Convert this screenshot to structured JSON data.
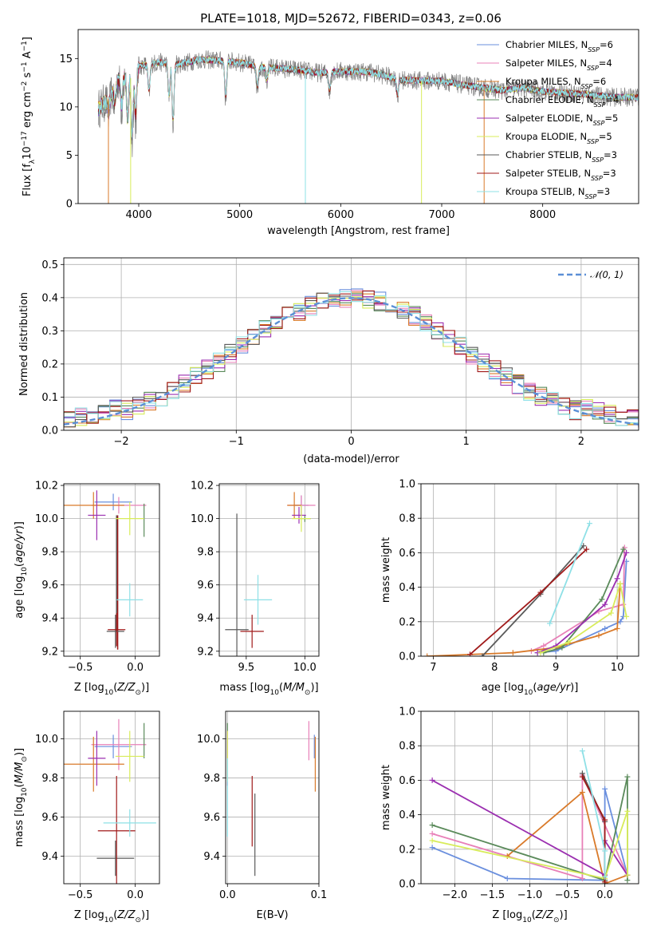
{
  "title": "PLATE=1018, MJD=52672, FIBERID=0343, z=0.06",
  "colors": {
    "Chabrier MILES": "#6a8fde",
    "Salpeter MILES": "#e880b8",
    "Kroupa MILES": "#d97a2a",
    "Chabrier ELODIE": "#5a8a5a",
    "Salpeter ELODIE": "#9b2fb0",
    "Kroupa ELODIE": "#d8ec5a",
    "Chabrier STELIB": "#5a5a5a",
    "Salpeter STELIB": "#a01a1a",
    "Kroupa STELIB": "#8ee0e6",
    "data": "#808080",
    "normal": "#5b8fd6"
  },
  "chart_data": [
    {
      "id": "spectrum",
      "type": "line",
      "xlabel": "wavelength [Angstrom, rest frame]",
      "ylabel": "Flux [f_λ10^-17 erg cm^-2 s^-1 A^-1]",
      "xlim": [
        3400,
        8950
      ],
      "ylim": [
        0,
        18
      ],
      "xticks": [
        4000,
        5000,
        6000,
        7000,
        8000
      ],
      "yticks": [
        0,
        5,
        10,
        15
      ],
      "grid": false,
      "legend_position": "right",
      "legend": [
        {
          "label": "Chabrier MILES",
          "n_ssp": "6"
        },
        {
          "label": "Salpeter MILES",
          "n_ssp": "4"
        },
        {
          "label": "Kroupa MILES",
          "n_ssp": "6"
        },
        {
          "label": "Chabrier ELODIE",
          "n_ssp": "4"
        },
        {
          "label": "Salpeter ELODIE",
          "n_ssp": "5"
        },
        {
          "label": "Kroupa ELODIE",
          "n_ssp": "5"
        },
        {
          "label": "Chabrier STELIB",
          "n_ssp": "3"
        },
        {
          "label": "Salpeter STELIB",
          "n_ssp": "3"
        },
        {
          "label": "Kroupa STELIB",
          "n_ssp": "3"
        }
      ],
      "continuum": [
        [
          3600,
          9.8
        ],
        [
          3700,
          10.8
        ],
        [
          3800,
          12.8
        ],
        [
          3900,
          13.2
        ],
        [
          3950,
          12.6
        ],
        [
          4000,
          14.2
        ],
        [
          4200,
          14.6
        ],
        [
          4400,
          14.4
        ],
        [
          4600,
          14.9
        ],
        [
          4800,
          14.8
        ],
        [
          5000,
          14.6
        ],
        [
          5200,
          14.1
        ],
        [
          5400,
          14.0
        ],
        [
          5600,
          13.8
        ],
        [
          5800,
          13.5
        ],
        [
          6000,
          13.7
        ],
        [
          6300,
          13.6
        ],
        [
          6600,
          12.8
        ],
        [
          6800,
          12.7
        ],
        [
          7000,
          12.7
        ],
        [
          7200,
          12.3
        ],
        [
          7400,
          12.0
        ],
        [
          7600,
          11.7
        ],
        [
          7800,
          12.0
        ],
        [
          8000,
          11.6
        ],
        [
          8300,
          11.4
        ],
        [
          8700,
          11.0
        ],
        [
          8950,
          11.0
        ]
      ],
      "absorption_features": [
        [
          3700,
          9.2
        ],
        [
          3760,
          10.0
        ],
        [
          3830,
          9.6
        ],
        [
          3890,
          8.0
        ],
        [
          3934,
          6.2
        ],
        [
          3969,
          8.4
        ],
        [
          4102,
          11.2
        ],
        [
          4300,
          10.6
        ],
        [
          4340,
          7.8
        ],
        [
          4861,
          10.6
        ],
        [
          5175,
          11.8
        ],
        [
          5270,
          12.6
        ],
        [
          5890,
          11.4
        ],
        [
          6563,
          11.0
        ]
      ]
    },
    {
      "id": "residual-histogram",
      "type": "line",
      "xlabel": "(data-model)/error",
      "ylabel": "Normed distribution",
      "xlim": [
        -2.5,
        2.5
      ],
      "ylim": [
        0,
        0.52
      ],
      "xticks": [
        -2,
        -1,
        0,
        1,
        2
      ],
      "yticks": [
        0.0,
        0.1,
        0.2,
        0.3,
        0.4,
        0.5
      ],
      "grid": true,
      "legend_position": "top-right",
      "reference_label": "𝒩(0, 1)",
      "bin_width": 0.1,
      "note": "step histograms of residuals for each of the 9 fits, approximately following a standard normal"
    },
    {
      "id": "age-vs-Z",
      "type": "scatter",
      "xlabel": "Z [log10(Z/Z⊙)]",
      "ylabel": "age  [log10(age/yr)]",
      "xlim": [
        -0.65,
        0.22
      ],
      "ylim": [
        9.17,
        10.21
      ],
      "xticks": [
        -0.5,
        0.0
      ],
      "yticks": [
        9.2,
        9.4,
        9.6,
        9.8,
        10.0,
        10.2
      ],
      "grid": true,
      "points": [
        {
          "model": "Chabrier MILES",
          "x": -0.2,
          "y": 10.1,
          "xerr": 0.17,
          "yerr": 0.05
        },
        {
          "model": "Salpeter MILES",
          "x": -0.15,
          "y": 10.08,
          "xerr": 0.25,
          "yerr": 0.05
        },
        {
          "model": "Kroupa MILES",
          "x": -0.38,
          "y": 10.08,
          "xerr": 0.28,
          "yerr": 0.08
        },
        {
          "model": "Chabrier ELODIE",
          "x": 0.08,
          "y": 9.99,
          "xerr": 0.0,
          "yerr": 0.1
        },
        {
          "model": "Salpeter ELODIE",
          "x": -0.35,
          "y": 10.02,
          "xerr": 0.08,
          "yerr": 0.15
        },
        {
          "model": "Kroupa ELODIE",
          "x": -0.05,
          "y": 10.0,
          "xerr": 0.13,
          "yerr": 0.1
        },
        {
          "model": "Chabrier STELIB",
          "x": -0.18,
          "y": 9.32,
          "xerr": 0.08,
          "yerr": 0.1
        },
        {
          "model": "Salpeter STELIB",
          "x": -0.17,
          "y": 9.33,
          "xerr": 0.08,
          "yerr": 0.1
        },
        {
          "model": "Kroupa STELIB",
          "x": -0.05,
          "y": 9.51,
          "xerr": 0.12,
          "yerr": 0.1
        }
      ],
      "vertical_segments": [
        {
          "model": "Chabrier STELIB",
          "x": -0.17,
          "y1": 9.32,
          "y2": 10.02
        },
        {
          "model": "Salpeter STELIB",
          "x": -0.16,
          "y1": 9.21,
          "y2": 10.02
        }
      ]
    },
    {
      "id": "age-vs-mass",
      "type": "scatter",
      "xlabel": "mass [log10(M/M⊙)]",
      "ylabel": "",
      "xlim": [
        9.27,
        10.12
      ],
      "ylim": [
        9.17,
        10.21
      ],
      "xticks": [
        9.5,
        10.0
      ],
      "yticks": [
        9.2,
        9.4,
        9.6,
        9.8,
        10.0,
        10.2
      ],
      "grid": true,
      "points": [
        {
          "model": "Chabrier MILES",
          "x": 9.97,
          "y": 10.08,
          "xerr": 0.06,
          "yerr": 0.06
        },
        {
          "model": "Salpeter MILES",
          "x": 9.97,
          "y": 10.08,
          "xerr": 0.12,
          "yerr": 0.06
        },
        {
          "model": "Kroupa MILES",
          "x": 9.91,
          "y": 10.08,
          "xerr": 0.06,
          "yerr": 0.08
        },
        {
          "model": "Chabrier ELODIE",
          "x": 10.0,
          "y": 10.0,
          "xerr": 0.05,
          "yerr": 0.02
        },
        {
          "model": "Salpeter ELODIE",
          "x": 9.95,
          "y": 10.02,
          "xerr": 0.06,
          "yerr": 0.05
        },
        {
          "model": "Kroupa ELODIE",
          "x": 9.97,
          "y": 10.0,
          "xerr": 0.08,
          "yerr": 0.08
        },
        {
          "model": "Chabrier STELIB",
          "x": 9.42,
          "y": 9.33,
          "xerr": 0.1,
          "yerr": 0.7
        },
        {
          "model": "Salpeter STELIB",
          "x": 9.55,
          "y": 9.32,
          "xerr": 0.1,
          "yerr": 0.1
        },
        {
          "model": "Kroupa STELIB",
          "x": 9.6,
          "y": 9.51,
          "xerr": 0.12,
          "yerr": 0.15
        }
      ]
    },
    {
      "id": "mass-weight-vs-age",
      "type": "line",
      "xlabel": "age  [log10(age/yr)]",
      "ylabel": "mass weight",
      "xlim": [
        6.8,
        10.35
      ],
      "ylim": [
        0,
        1.0
      ],
      "xticks": [
        7,
        8,
        9,
        10
      ],
      "yticks": [
        0.0,
        0.2,
        0.4,
        0.6,
        0.8,
        1.0
      ],
      "grid": true,
      "series": [
        {
          "model": "Chabrier MILES",
          "x": [
            8.7,
            9.0,
            9.8,
            10.05,
            10.1,
            10.15
          ],
          "y": [
            0.02,
            0.03,
            0.16,
            0.2,
            0.23,
            0.55
          ]
        },
        {
          "model": "Salpeter MILES",
          "x": [
            8.6,
            8.8,
            9.7,
            10.1,
            10.12
          ],
          "y": [
            0.03,
            0.06,
            0.26,
            0.3,
            0.63
          ]
        },
        {
          "model": "Kroupa MILES",
          "x": [
            6.9,
            8.3,
            9.0,
            9.7,
            10.0,
            10.05
          ],
          "y": [
            0.0,
            0.02,
            0.05,
            0.12,
            0.16,
            0.42
          ]
        },
        {
          "model": "Chabrier ELODIE",
          "x": [
            8.8,
            9.1,
            9.75,
            10.1
          ],
          "y": [
            0.02,
            0.05,
            0.33,
            0.62
          ]
        },
        {
          "model": "Salpeter ELODIE",
          "x": [
            8.7,
            9.0,
            9.8,
            10.0,
            10.15
          ],
          "y": [
            0.02,
            0.06,
            0.3,
            0.45,
            0.6
          ]
        },
        {
          "model": "Kroupa ELODIE",
          "x": [
            8.75,
            9.2,
            9.9,
            10.05,
            10.15
          ],
          "y": [
            0.02,
            0.08,
            0.25,
            0.42,
            0.23
          ]
        },
        {
          "model": "Chabrier STELIB",
          "x": [
            7.8,
            8.75,
            9.45
          ],
          "y": [
            0.0,
            0.36,
            0.64
          ]
        },
        {
          "model": "Salpeter STELIB",
          "x": [
            7.6,
            8.75,
            9.5
          ],
          "y": [
            0.01,
            0.37,
            0.62
          ]
        },
        {
          "model": "Kroupa STELIB",
          "x": [
            8.9,
            9.55
          ],
          "y": [
            0.19,
            0.77
          ]
        }
      ]
    },
    {
      "id": "mass-vs-Z",
      "type": "scatter",
      "xlabel": "Z [log10(Z/Z⊙)]",
      "ylabel": "mass [log10(M/M⊙)]",
      "xlim": [
        -0.65,
        0.22
      ],
      "ylim": [
        9.26,
        10.14
      ],
      "xticks": [
        -0.5,
        0.0
      ],
      "yticks": [
        9.4,
        9.6,
        9.8,
        10.0
      ],
      "grid": true,
      "points": [
        {
          "model": "Chabrier MILES",
          "x": -0.2,
          "y": 9.96,
          "xerr": 0.17,
          "yerr": 0.06
        },
        {
          "model": "Salpeter MILES",
          "x": -0.15,
          "y": 9.97,
          "xerr": 0.25,
          "yerr": 0.13
        },
        {
          "model": "Kroupa MILES",
          "x": -0.38,
          "y": 9.87,
          "xerr": 0.28,
          "yerr": 0.14
        },
        {
          "model": "Chabrier ELODIE",
          "x": 0.08,
          "y": 9.99,
          "xerr": 0.0,
          "yerr": 0.09
        },
        {
          "model": "Salpeter ELODIE",
          "x": -0.35,
          "y": 9.9,
          "xerr": 0.08,
          "yerr": 0.14
        },
        {
          "model": "Kroupa ELODIE",
          "x": -0.05,
          "y": 9.91,
          "xerr": 0.13,
          "yerr": 0.13
        },
        {
          "model": "Chabrier STELIB",
          "x": -0.18,
          "y": 9.39,
          "xerr": 0.17,
          "yerr": 0.09
        },
        {
          "model": "Salpeter STELIB",
          "x": -0.17,
          "y": 9.53,
          "xerr": 0.17,
          "yerr": 0.28
        },
        {
          "model": "Kroupa STELIB",
          "x": -0.05,
          "y": 9.57,
          "xerr": 0.24,
          "yerr": 0.07
        }
      ]
    },
    {
      "id": "mass-vs-ebv",
      "type": "scatter",
      "xlabel": "E(B-V)",
      "ylabel": "",
      "xlim": [
        -0.002,
        0.1
      ],
      "ylim": [
        9.26,
        10.14
      ],
      "xticks": [
        0.0,
        0.1
      ],
      "yticks": [
        9.4,
        9.6,
        9.8,
        10.0
      ],
      "grid": true,
      "points": [
        {
          "model": "Chabrier MILES",
          "x": 0.095,
          "y": 9.96,
          "xerr": 0,
          "yerr": 0.06
        },
        {
          "model": "Salpeter MILES",
          "x": 0.089,
          "y": 9.99,
          "xerr": 0,
          "yerr": 0.1
        },
        {
          "model": "Kroupa MILES",
          "x": 0.096,
          "y": 9.87,
          "xerr": 0,
          "yerr": 0.14
        },
        {
          "model": "Chabrier ELODIE",
          "x": 0.0,
          "y": 9.99,
          "xerr": 0,
          "yerr": 0.09
        },
        {
          "model": "Salpeter ELODIE",
          "x": 0.0,
          "y": 9.9,
          "xerr": 0,
          "yerr": 0.14
        },
        {
          "model": "Kroupa ELODIE",
          "x": 0.0,
          "y": 9.91,
          "xerr": 0,
          "yerr": 0.13
        },
        {
          "model": "Chabrier STELIB",
          "x": 0.03,
          "y": 9.51,
          "xerr": 0,
          "yerr": 0.21
        },
        {
          "model": "Salpeter STELIB",
          "x": 0.027,
          "y": 9.63,
          "xerr": 0,
          "yerr": 0.18
        },
        {
          "model": "Kroupa STELIB",
          "x": 0.0,
          "y": 9.7,
          "xerr": 0,
          "yerr": 0.2
        }
      ]
    },
    {
      "id": "mass-weight-vs-Z",
      "type": "line",
      "xlabel": "Z [log10(Z/Z⊙)]",
      "ylabel": "mass weight",
      "xlim": [
        -2.45,
        0.45
      ],
      "ylim": [
        0,
        1.0
      ],
      "xticks": [
        -2.0,
        -1.5,
        -1.0,
        -0.5,
        0.0
      ],
      "yticks": [
        0.0,
        0.2,
        0.4,
        0.6,
        0.8,
        1.0
      ],
      "grid": true,
      "series": [
        {
          "model": "Chabrier MILES",
          "x": [
            -2.3,
            -1.3,
            0.0,
            0.0,
            0.3
          ],
          "y": [
            0.21,
            0.03,
            0.02,
            0.55,
            0.05
          ]
        },
        {
          "model": "Salpeter MILES",
          "x": [
            -2.3,
            -0.3,
            -0.3,
            0.3
          ],
          "y": [
            0.29,
            0.03,
            0.63,
            0.05
          ]
        },
        {
          "model": "Kroupa MILES",
          "x": [
            -1.3,
            -0.3,
            0.0,
            0.3
          ],
          "y": [
            0.16,
            0.53,
            0.0,
            0.05
          ]
        },
        {
          "model": "Chabrier ELODIE",
          "x": [
            -2.3,
            0.0,
            0.3,
            0.3
          ],
          "y": [
            0.34,
            0.02,
            0.62,
            0.02
          ]
        },
        {
          "model": "Salpeter ELODIE",
          "x": [
            -2.3,
            0.0,
            0.0,
            0.3
          ],
          "y": [
            0.6,
            0.05,
            0.25,
            0.05
          ]
        },
        {
          "model": "Kroupa ELODIE",
          "x": [
            -2.3,
            0.0,
            0.3,
            0.3
          ],
          "y": [
            0.25,
            0.03,
            0.42,
            0.05
          ]
        },
        {
          "model": "Chabrier STELIB",
          "x": [
            -0.3,
            0.0,
            0.0
          ],
          "y": [
            0.64,
            0.36,
            0.0
          ]
        },
        {
          "model": "Salpeter STELIB",
          "x": [
            -0.3,
            0.0,
            0.0
          ],
          "y": [
            0.62,
            0.37,
            0.01
          ]
        },
        {
          "model": "Kroupa STELIB",
          "x": [
            -0.3,
            0.0,
            0.0
          ],
          "y": [
            0.77,
            0.19,
            0.04
          ]
        }
      ]
    }
  ]
}
